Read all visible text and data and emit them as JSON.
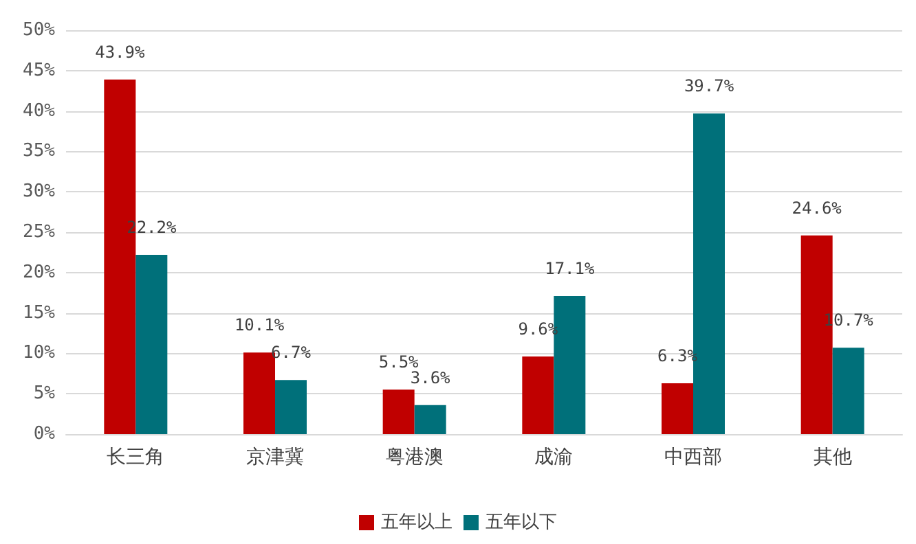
{
  "chart_data": {
    "type": "bar",
    "categories": [
      "长三角",
      "京津冀",
      "粤港澳",
      "成渝",
      "中西部",
      "其他"
    ],
    "series": [
      {
        "name": "五年以上",
        "color": "#c00000",
        "values": [
          43.9,
          10.1,
          5.5,
          9.6,
          6.3,
          24.6
        ],
        "value_labels": [
          "43.9%",
          "10.1%",
          "5.5%",
          "9.6%",
          "6.3%",
          "24.6%"
        ]
      },
      {
        "name": "五年以下",
        "color": "#00707a",
        "values": [
          22.2,
          6.7,
          3.6,
          17.1,
          39.7,
          10.7
        ],
        "value_labels": [
          "22.2%",
          "6.7%",
          "3.6%",
          "17.1%",
          "39.7%",
          "10.7%"
        ]
      }
    ],
    "ylim": [
      0,
      50
    ],
    "yticks": [
      {
        "value": 0,
        "label": "0%"
      },
      {
        "value": 5,
        "label": "5%"
      },
      {
        "value": 10,
        "label": "10%"
      },
      {
        "value": 15,
        "label": "15%"
      },
      {
        "value": 20,
        "label": "20%"
      },
      {
        "value": 25,
        "label": "25%"
      },
      {
        "value": 30,
        "label": "30%"
      },
      {
        "value": 35,
        "label": "35%"
      },
      {
        "value": 40,
        "label": "40%"
      },
      {
        "value": 45,
        "label": "45%"
      },
      {
        "value": 50,
        "label": "50%"
      }
    ],
    "grid": "y",
    "legend": "bottom"
  }
}
